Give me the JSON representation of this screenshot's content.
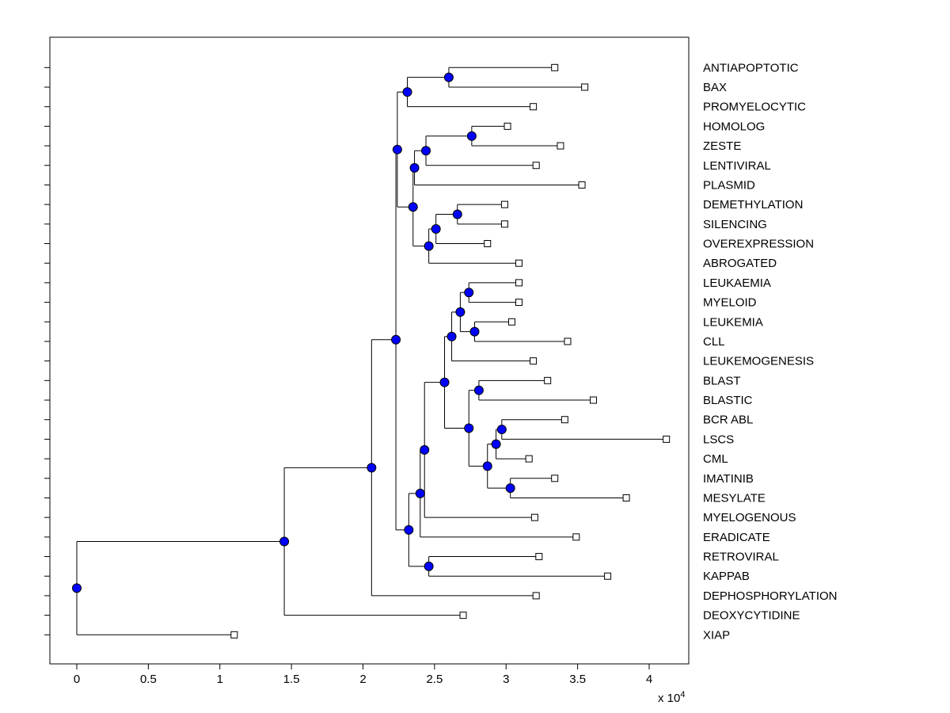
{
  "figure": {
    "background": "#ffffff"
  },
  "chart_data": {
    "type": "dendrogram",
    "orientation": "root-left-leaves-right",
    "title": "",
    "grid": false,
    "x_axis": {
      "unit_prefix": "x 10",
      "unit_exponent": "4",
      "unit_multiplier": 10000,
      "ticks": [
        0,
        0.5,
        1,
        1.5,
        2,
        2.5,
        3,
        3.5,
        4
      ],
      "tick_labels": [
        "0",
        "0.5",
        "1",
        "1.5",
        "2",
        "2.5",
        "3",
        "3.5",
        "4"
      ],
      "xlim": [
        -0.19,
        4.28
      ]
    },
    "styles": {
      "link_color": "#000000",
      "node_fill": "#0000ff",
      "node_stroke": "#000000",
      "leaf_fill": "#ffffff",
      "leaf_stroke": "#000000",
      "axis_color": "#000000"
    },
    "leaves": [
      {
        "label": "ANTIAPOPTOTIC",
        "x": 3.34
      },
      {
        "label": "BAX",
        "x": 3.55
      },
      {
        "label": "PROMYELOCYTIC",
        "x": 3.19
      },
      {
        "label": "HOMOLOG",
        "x": 3.01
      },
      {
        "label": "ZESTE",
        "x": 3.38
      },
      {
        "label": "LENTIVIRAL",
        "x": 3.21
      },
      {
        "label": "PLASMID",
        "x": 3.53
      },
      {
        "label": "DEMETHYLATION",
        "x": 2.99
      },
      {
        "label": "SILENCING",
        "x": 2.99
      },
      {
        "label": "OVEREXPRESSION",
        "x": 2.87
      },
      {
        "label": "ABROGATED",
        "x": 3.09
      },
      {
        "label": "LEUKAEMIA",
        "x": 3.09
      },
      {
        "label": "MYELOID",
        "x": 3.09
      },
      {
        "label": "LEUKEMIA",
        "x": 3.04
      },
      {
        "label": "CLL",
        "x": 3.43
      },
      {
        "label": "LEUKEMOGENESIS",
        "x": 3.19
      },
      {
        "label": "BLAST",
        "x": 3.29
      },
      {
        "label": "BLASTIC",
        "x": 3.61
      },
      {
        "label": "BCR ABL",
        "x": 3.41
      },
      {
        "label": "LSCS",
        "x": 4.12
      },
      {
        "label": "CML",
        "x": 3.16
      },
      {
        "label": "IMATINIB",
        "x": 3.34
      },
      {
        "label": "MESYLATE",
        "x": 3.84
      },
      {
        "label": "MYELOGENOUS",
        "x": 3.2
      },
      {
        "label": "ERADICATE",
        "x": 3.49
      },
      {
        "label": "RETROVIRAL",
        "x": 3.23
      },
      {
        "label": "KAPPAB",
        "x": 3.71
      },
      {
        "label": "DEPHOSPHORYLATION",
        "x": 3.21
      },
      {
        "label": "DEOXYCYTIDINE",
        "x": 2.7
      },
      {
        "label": "XIAP",
        "x": 1.1
      }
    ],
    "merges": [
      {
        "id": "n1",
        "x": 2.6,
        "children": [
          "ANTIAPOPTOTIC",
          "BAX"
        ]
      },
      {
        "id": "n2",
        "x": 2.31,
        "children": [
          "n1",
          "PROMYELOCYTIC"
        ]
      },
      {
        "id": "n3",
        "x": 2.76,
        "children": [
          "HOMOLOG",
          "ZESTE"
        ]
      },
      {
        "id": "n4",
        "x": 2.44,
        "children": [
          "n3",
          "LENTIVIRAL"
        ]
      },
      {
        "id": "n5",
        "x": 2.36,
        "children": [
          "n4",
          "PLASMID"
        ]
      },
      {
        "id": "n6",
        "x": 2.66,
        "children": [
          "DEMETHYLATION",
          "SILENCING"
        ]
      },
      {
        "id": "n7",
        "x": 2.51,
        "children": [
          "n6",
          "OVEREXPRESSION"
        ]
      },
      {
        "id": "n8",
        "x": 2.46,
        "children": [
          "n7",
          "ABROGATED"
        ]
      },
      {
        "id": "n9",
        "x": 2.35,
        "children": [
          "n5",
          "n8"
        ]
      },
      {
        "id": "n10",
        "x": 2.24,
        "children": [
          "n2",
          "n9"
        ]
      },
      {
        "id": "n11",
        "x": 2.74,
        "children": [
          "LEUKAEMIA",
          "MYELOID"
        ]
      },
      {
        "id": "n12",
        "x": 2.78,
        "children": [
          "LEUKEMIA",
          "CLL"
        ]
      },
      {
        "id": "n13",
        "x": 2.68,
        "children": [
          "n11",
          "n12"
        ]
      },
      {
        "id": "n14",
        "x": 2.62,
        "children": [
          "n13",
          "LEUKEMOGENESIS"
        ]
      },
      {
        "id": "n15",
        "x": 2.81,
        "children": [
          "BLAST",
          "BLASTIC"
        ]
      },
      {
        "id": "n16",
        "x": 2.97,
        "children": [
          "BCR ABL",
          "LSCS"
        ]
      },
      {
        "id": "n17",
        "x": 2.93,
        "children": [
          "n16",
          "CML"
        ]
      },
      {
        "id": "n18",
        "x": 3.03,
        "children": [
          "IMATINIB",
          "MESYLATE"
        ]
      },
      {
        "id": "n19",
        "x": 2.87,
        "children": [
          "n17",
          "n18"
        ]
      },
      {
        "id": "n20",
        "x": 2.74,
        "children": [
          "n15",
          "n19"
        ]
      },
      {
        "id": "n21",
        "x": 2.57,
        "children": [
          "n14",
          "n20"
        ]
      },
      {
        "id": "n22",
        "x": 2.43,
        "children": [
          "n21",
          "MYELOGENOUS"
        ]
      },
      {
        "id": "n23",
        "x": 2.4,
        "children": [
          "n22",
          "ERADICATE"
        ]
      },
      {
        "id": "n24",
        "x": 2.46,
        "children": [
          "RETROVIRAL",
          "KAPPAB"
        ]
      },
      {
        "id": "n25",
        "x": 2.32,
        "children": [
          "n23",
          "n24"
        ]
      },
      {
        "id": "n26",
        "x": 2.23,
        "children": [
          "n10",
          "n25"
        ]
      },
      {
        "id": "n27",
        "x": 2.06,
        "children": [
          "n26",
          "DEPHOSPHORYLATION"
        ]
      },
      {
        "id": "n28",
        "x": 1.45,
        "children": [
          "n27",
          "DEOXYCYTIDINE"
        ]
      },
      {
        "id": "n29",
        "x": 0.0,
        "children": [
          "n28",
          "XIAP"
        ]
      }
    ]
  }
}
